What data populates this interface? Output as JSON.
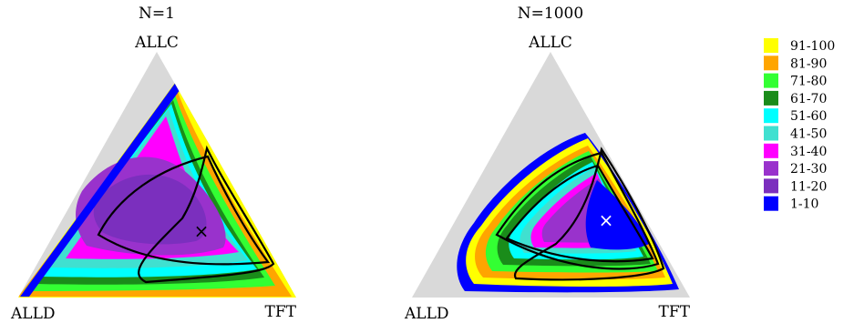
{
  "chart_data": [
    {
      "type": "heatmap",
      "title": "N=1",
      "corner_labels": {
        "top": "ALLC",
        "bottom_left": "ALLD",
        "bottom_right": "TFT"
      },
      "marker": {
        "symbol": "×",
        "color": "#000000"
      }
    },
    {
      "type": "heatmap",
      "title": "N=1000",
      "corner_labels": {
        "top": "ALLC",
        "bottom_left": "ALLD",
        "bottom_right": "TFT"
      },
      "marker": {
        "symbol": "×",
        "color": "#ffffff"
      }
    }
  ],
  "legend": {
    "placement": "right",
    "entries": [
      {
        "label": "91-100",
        "color": "#ffff00"
      },
      {
        "label": "81-90",
        "color": "#ffa500"
      },
      {
        "label": "71-80",
        "color": "#33ff33"
      },
      {
        "label": "61-70",
        "color": "#1a8c1a"
      },
      {
        "label": "51-60",
        "color": "#00ffff"
      },
      {
        "label": "41-50",
        "color": "#40e0d0"
      },
      {
        "label": "31-40",
        "color": "#ff00ff"
      },
      {
        "label": "21-30",
        "color": "#9932cc"
      },
      {
        "label": "11-20",
        "color": "#7b2fbe"
      },
      {
        "label": "1-10",
        "color": "#0000ff"
      }
    ]
  },
  "colors": {
    "simplex_bg": "#d9d9d9",
    "orbit": "#000000"
  }
}
